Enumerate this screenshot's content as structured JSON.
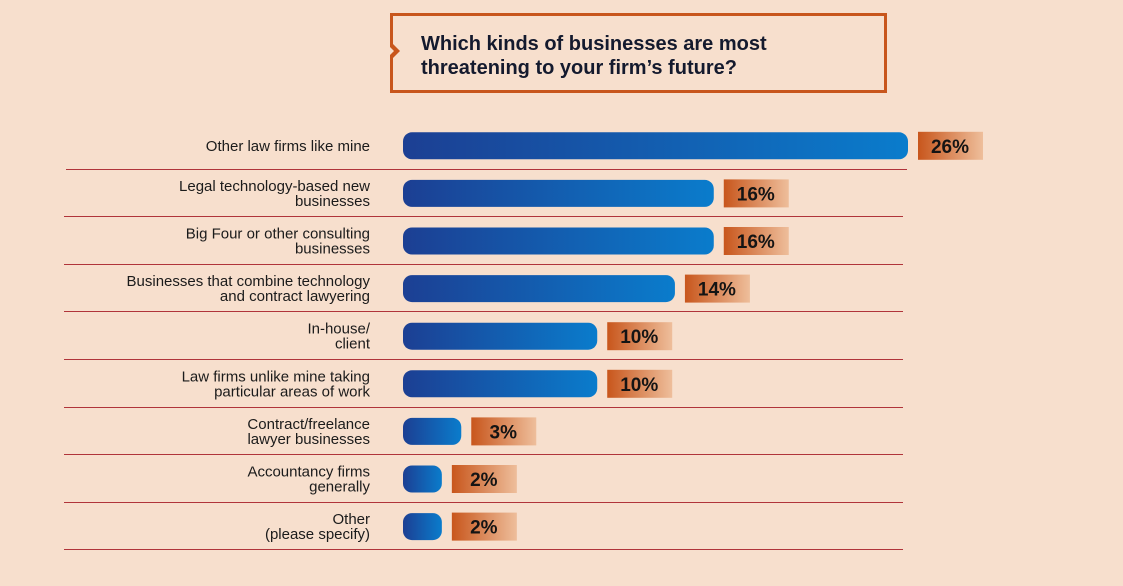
{
  "chart_data": {
    "type": "bar",
    "orientation": "horizontal",
    "title": "Which kinds of businesses are most threatening to your firm’s future?",
    "categories": [
      [
        "Other law firms like mine"
      ],
      [
        "Legal technology-based new",
        "businesses"
      ],
      [
        "Big Four or other consulting",
        "businesses"
      ],
      [
        "Businesses that combine technology",
        "and contract lawyering"
      ],
      [
        "In-house/",
        "client"
      ],
      [
        "Law firms unlike mine taking",
        "particular areas of work"
      ],
      [
        "Contract/freelance",
        "lawyer businesses"
      ],
      [
        "Accountancy firms",
        "generally"
      ],
      [
        "Other",
        "(please specify)"
      ]
    ],
    "values": [
      26,
      16,
      16,
      14,
      10,
      10,
      3,
      2,
      2
    ],
    "value_labels": [
      "26%",
      "16%",
      "16%",
      "14%",
      "10%",
      "10%",
      "3%",
      "2%",
      "2%"
    ],
    "unit": "%",
    "xlim": [
      0,
      26
    ]
  },
  "colors": {
    "bar_start": "#1c3f93",
    "bar_end": "#0a7ccc",
    "label_box_start": "#c8561c",
    "label_box_end": "#eebe9b",
    "divider": "#b0343a",
    "frame": "#c8561c"
  }
}
